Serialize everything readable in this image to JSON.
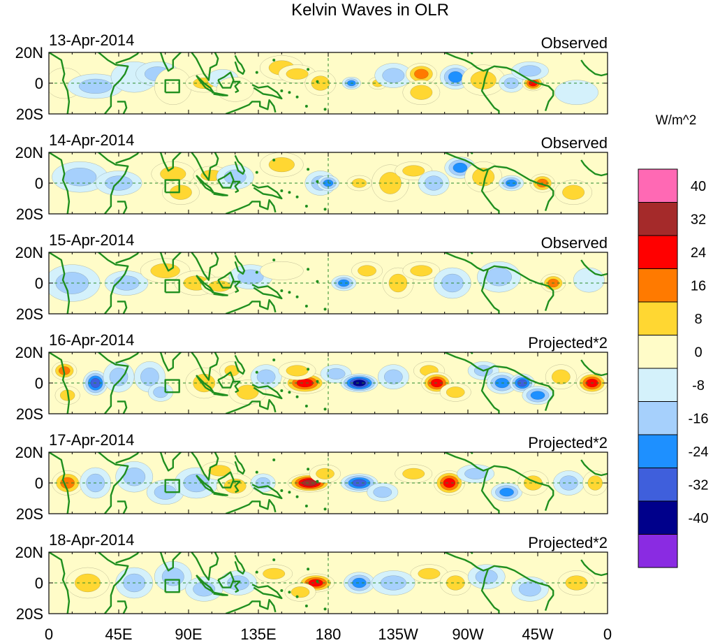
{
  "chart_data": {
    "type": "heatmap",
    "title": "Kelvin Waves in OLR",
    "variable": "OLR",
    "units_label": "W/m^2",
    "colorbar": {
      "levels": [
        -40,
        -32,
        -24,
        -16,
        -8,
        0,
        8,
        16,
        24,
        32,
        40
      ],
      "labels": [
        "40",
        "32",
        "24",
        "16",
        "8",
        "0",
        "-8",
        "-16",
        "-24",
        "-32",
        "-40"
      ],
      "colors": [
        "#8a2be2",
        "#00008b",
        "#3f5fdc",
        "#1e90ff",
        "#a6d0fc",
        "#d4f1fb",
        "#fffcc8",
        "#ffd732",
        "#ff7a00",
        "#ff0000",
        "#a52a2a",
        "#ff69b4"
      ]
    },
    "x_ticks": [
      "0",
      "45E",
      "90E",
      "135E",
      "180",
      "135W",
      "90W",
      "45W",
      "0"
    ],
    "x_tick_lons": [
      0,
      45,
      90,
      135,
      180,
      225,
      270,
      315,
      360
    ],
    "y_ticks": [
      "20N",
      "0",
      "20S"
    ],
    "y_tick_lats": [
      20,
      0,
      -20
    ],
    "xlim": [
      0,
      360
    ],
    "ylim": [
      -20,
      20
    ],
    "panels": [
      {
        "date": "13-Apr-2014",
        "label": "Observed",
        "anomalies": [
          {
            "lon": 10,
            "lat": 0,
            "value": 4,
            "wlon": 12,
            "wlat": 10
          },
          {
            "lon": 30,
            "lat": -2,
            "value": -10,
            "wlon": 18,
            "wlat": 8
          },
          {
            "lon": 55,
            "lat": 4,
            "value": -8,
            "wlon": 15,
            "wlat": 10
          },
          {
            "lon": 70,
            "lat": 6,
            "value": -9,
            "wlon": 14,
            "wlat": 8
          },
          {
            "lon": 80,
            "lat": -2,
            "value": 8,
            "wlon": 12,
            "wlat": 12
          },
          {
            "lon": 100,
            "lat": 0,
            "value": 9,
            "wlon": 12,
            "wlat": 6
          },
          {
            "lon": 112,
            "lat": 3,
            "value": -8,
            "wlon": 10,
            "wlat": 6
          },
          {
            "lon": 120,
            "lat": -4,
            "value": 8,
            "wlon": 12,
            "wlat": 8
          },
          {
            "lon": 150,
            "lat": 10,
            "value": 10,
            "wlon": 14,
            "wlat": 8
          },
          {
            "lon": 160,
            "lat": 6,
            "value": 9,
            "wlon": 12,
            "wlat": 6
          },
          {
            "lon": 175,
            "lat": 0,
            "value": 9,
            "wlon": 10,
            "wlat": 8
          },
          {
            "lon": 195,
            "lat": 0,
            "value": -22,
            "wlon": 6,
            "wlat": 4
          },
          {
            "lon": 212,
            "lat": 0,
            "value": 12,
            "wlon": 6,
            "wlat": 4
          },
          {
            "lon": 222,
            "lat": 5,
            "value": -9,
            "wlon": 12,
            "wlat": 8
          },
          {
            "lon": 240,
            "lat": 6,
            "value": 20,
            "wlon": 10,
            "wlat": 7
          },
          {
            "lon": 240,
            "lat": -6,
            "value": 14,
            "wlon": 12,
            "wlat": 8
          },
          {
            "lon": 262,
            "lat": 4,
            "value": -18,
            "wlon": 10,
            "wlat": 8
          },
          {
            "lon": 280,
            "lat": 2,
            "value": 10,
            "wlon": 14,
            "wlat": 10
          },
          {
            "lon": 298,
            "lat": 0,
            "value": -10,
            "wlon": 8,
            "wlat": 6
          },
          {
            "lon": 312,
            "lat": 0,
            "value": 26,
            "wlon": 7,
            "wlat": 5
          },
          {
            "lon": 310,
            "lat": 8,
            "value": -10,
            "wlon": 12,
            "wlat": 6
          },
          {
            "lon": 340,
            "lat": -6,
            "value": -8,
            "wlon": 14,
            "wlat": 8
          }
        ]
      },
      {
        "date": "14-Apr-2014",
        "label": "Observed",
        "anomalies": [
          {
            "lon": 20,
            "lat": 4,
            "value": -9,
            "wlon": 18,
            "wlat": 10
          },
          {
            "lon": 45,
            "lat": 0,
            "value": -9,
            "wlon": 15,
            "wlat": 8
          },
          {
            "lon": 80,
            "lat": 6,
            "value": 9,
            "wlon": 14,
            "wlat": 8
          },
          {
            "lon": 85,
            "lat": -6,
            "value": 9,
            "wlon": 12,
            "wlat": 8
          },
          {
            "lon": 105,
            "lat": 5,
            "value": 9,
            "wlon": 12,
            "wlat": 6
          },
          {
            "lon": 120,
            "lat": 4,
            "value": -9,
            "wlon": 12,
            "wlat": 8
          },
          {
            "lon": 150,
            "lat": 12,
            "value": 9,
            "wlon": 14,
            "wlat": 8
          },
          {
            "lon": 175,
            "lat": 0,
            "value": -10,
            "wlon": 10,
            "wlat": 8
          },
          {
            "lon": 180,
            "lat": 0,
            "value": -22,
            "wlon": 7,
            "wlat": 5
          },
          {
            "lon": 200,
            "lat": 0,
            "value": 9,
            "wlon": 8,
            "wlat": 5
          },
          {
            "lon": 220,
            "lat": 0,
            "value": 14,
            "wlon": 12,
            "wlat": 12
          },
          {
            "lon": 235,
            "lat": 8,
            "value": 12,
            "wlon": 12,
            "wlat": 6
          },
          {
            "lon": 248,
            "lat": 0,
            "value": -10,
            "wlon": 10,
            "wlat": 8
          },
          {
            "lon": 265,
            "lat": 10,
            "value": -18,
            "wlon": 10,
            "wlat": 7
          },
          {
            "lon": 280,
            "lat": 4,
            "value": 10,
            "wlon": 12,
            "wlat": 10
          },
          {
            "lon": 298,
            "lat": 0,
            "value": -20,
            "wlon": 8,
            "wlat": 5
          },
          {
            "lon": 318,
            "lat": 0,
            "value": 22,
            "wlon": 8,
            "wlat": 6
          },
          {
            "lon": 338,
            "lat": -6,
            "value": 9,
            "wlon": 12,
            "wlat": 8
          }
        ]
      },
      {
        "date": "15-Apr-2014",
        "label": "Observed",
        "anomalies": [
          {
            "lon": 15,
            "lat": 0,
            "value": -9,
            "wlon": 18,
            "wlat": 12
          },
          {
            "lon": 50,
            "lat": 0,
            "value": -9,
            "wlon": 14,
            "wlat": 8
          },
          {
            "lon": 75,
            "lat": 8,
            "value": 9,
            "wlon": 16,
            "wlat": 8
          },
          {
            "lon": 95,
            "lat": 0,
            "value": 9,
            "wlon": 14,
            "wlat": 8
          },
          {
            "lon": 110,
            "lat": -2,
            "value": 9,
            "wlon": 12,
            "wlat": 6
          },
          {
            "lon": 130,
            "lat": 4,
            "value": -9,
            "wlon": 14,
            "wlat": 8
          },
          {
            "lon": 150,
            "lat": 8,
            "value": 8,
            "wlon": 14,
            "wlat": 6
          },
          {
            "lon": 190,
            "lat": 0,
            "value": -20,
            "wlon": 8,
            "wlat": 5
          },
          {
            "lon": 205,
            "lat": 8,
            "value": 9,
            "wlon": 10,
            "wlat": 6
          },
          {
            "lon": 225,
            "lat": 0,
            "value": 12,
            "wlon": 10,
            "wlat": 10
          },
          {
            "lon": 240,
            "lat": 8,
            "value": 10,
            "wlon": 12,
            "wlat": 6
          },
          {
            "lon": 260,
            "lat": 0,
            "value": -10,
            "wlon": 12,
            "wlat": 10
          },
          {
            "lon": 290,
            "lat": 4,
            "value": -10,
            "wlon": 14,
            "wlat": 10
          },
          {
            "lon": 325,
            "lat": 0,
            "value": 20,
            "wlon": 8,
            "wlat": 6
          },
          {
            "lon": 348,
            "lat": 2,
            "value": -8,
            "wlon": 10,
            "wlat": 8
          }
        ]
      },
      {
        "date": "16-Apr-2014",
        "label": "Projected*2",
        "anomalies": [
          {
            "lon": 10,
            "lat": 8,
            "value": 18,
            "wlon": 8,
            "wlat": 6
          },
          {
            "lon": 12,
            "lat": -8,
            "value": 14,
            "wlon": 8,
            "wlat": 6
          },
          {
            "lon": 30,
            "lat": 0,
            "value": -28,
            "wlon": 8,
            "wlat": 8
          },
          {
            "lon": 45,
            "lat": 4,
            "value": -12,
            "wlon": 10,
            "wlat": 10
          },
          {
            "lon": 65,
            "lat": 4,
            "value": -12,
            "wlon": 10,
            "wlat": 10
          },
          {
            "lon": 72,
            "lat": -6,
            "value": -14,
            "wlon": 8,
            "wlat": 6
          },
          {
            "lon": 100,
            "lat": 0,
            "value": 12,
            "wlon": 12,
            "wlat": 10
          },
          {
            "lon": 118,
            "lat": 8,
            "value": 16,
            "wlon": 8,
            "wlat": 6
          },
          {
            "lon": 128,
            "lat": -6,
            "value": 12,
            "wlon": 12,
            "wlat": 8
          },
          {
            "lon": 140,
            "lat": 4,
            "value": -12,
            "wlon": 10,
            "wlat": 8
          },
          {
            "lon": 165,
            "lat": 0,
            "value": 26,
            "wlon": 14,
            "wlat": 7
          },
          {
            "lon": 160,
            "lat": 8,
            "value": 12,
            "wlon": 12,
            "wlat": 6
          },
          {
            "lon": 185,
            "lat": 6,
            "value": -16,
            "wlon": 10,
            "wlat": 6
          },
          {
            "lon": 200,
            "lat": 0,
            "value": -40,
            "wlon": 12,
            "wlat": 6
          },
          {
            "lon": 222,
            "lat": 4,
            "value": -14,
            "wlon": 10,
            "wlat": 8
          },
          {
            "lon": 245,
            "lat": 8,
            "value": 14,
            "wlon": 10,
            "wlat": 6
          },
          {
            "lon": 250,
            "lat": 0,
            "value": 28,
            "wlon": 10,
            "wlat": 7
          },
          {
            "lon": 262,
            "lat": -6,
            "value": 10,
            "wlon": 10,
            "wlat": 6
          },
          {
            "lon": 280,
            "lat": 8,
            "value": -14,
            "wlon": 10,
            "wlat": 6
          },
          {
            "lon": 292,
            "lat": 0,
            "value": -18,
            "wlon": 10,
            "wlat": 7
          },
          {
            "lon": 305,
            "lat": 0,
            "value": -30,
            "wlon": 8,
            "wlat": 6
          },
          {
            "lon": 315,
            "lat": -8,
            "value": -18,
            "wlon": 10,
            "wlat": 6
          },
          {
            "lon": 330,
            "lat": 4,
            "value": 10,
            "wlon": 10,
            "wlat": 8
          },
          {
            "lon": 350,
            "lat": 0,
            "value": 28,
            "wlon": 10,
            "wlat": 7
          }
        ]
      },
      {
        "date": "17-Apr-2014",
        "label": "Projected*2",
        "anomalies": [
          {
            "lon": 12,
            "lat": 0,
            "value": 22,
            "wlon": 10,
            "wlat": 8
          },
          {
            "lon": 30,
            "lat": 0,
            "value": -12,
            "wlon": 10,
            "wlat": 10
          },
          {
            "lon": 55,
            "lat": 4,
            "value": -14,
            "wlon": 12,
            "wlat": 10
          },
          {
            "lon": 75,
            "lat": -6,
            "value": -14,
            "wlon": 12,
            "wlat": 8
          },
          {
            "lon": 95,
            "lat": 0,
            "value": -10,
            "wlon": 14,
            "wlat": 10
          },
          {
            "lon": 110,
            "lat": 8,
            "value": 12,
            "wlon": 12,
            "wlat": 6
          },
          {
            "lon": 120,
            "lat": -2,
            "value": 12,
            "wlon": 12,
            "wlat": 8
          },
          {
            "lon": 138,
            "lat": 0,
            "value": -16,
            "wlon": 8,
            "wlat": 6
          },
          {
            "lon": 168,
            "lat": 0,
            "value": 34,
            "wlon": 14,
            "wlat": 6
          },
          {
            "lon": 178,
            "lat": 6,
            "value": 14,
            "wlon": 10,
            "wlat": 6
          },
          {
            "lon": 200,
            "lat": 0,
            "value": -30,
            "wlon": 12,
            "wlat": 6
          },
          {
            "lon": 215,
            "lat": -6,
            "value": -14,
            "wlon": 10,
            "wlat": 6
          },
          {
            "lon": 235,
            "lat": 6,
            "value": 12,
            "wlon": 12,
            "wlat": 6
          },
          {
            "lon": 258,
            "lat": 0,
            "value": 26,
            "wlon": 10,
            "wlat": 8
          },
          {
            "lon": 275,
            "lat": 6,
            "value": -14,
            "wlon": 12,
            "wlat": 6
          },
          {
            "lon": 295,
            "lat": -6,
            "value": -20,
            "wlon": 10,
            "wlat": 6
          },
          {
            "lon": 312,
            "lat": 0,
            "value": 12,
            "wlon": 10,
            "wlat": 8
          },
          {
            "lon": 335,
            "lat": 0,
            "value": -12,
            "wlon": 10,
            "wlat": 8
          },
          {
            "lon": 352,
            "lat": 0,
            "value": 10,
            "wlon": 8,
            "wlat": 8
          }
        ]
      },
      {
        "date": "18-Apr-2014",
        "label": "Projected*2",
        "anomalies": [
          {
            "lon": 25,
            "lat": 0,
            "value": 14,
            "wlon": 14,
            "wlat": 10
          },
          {
            "lon": 55,
            "lat": 0,
            "value": -10,
            "wlon": 12,
            "wlat": 10
          },
          {
            "lon": 80,
            "lat": 4,
            "value": -12,
            "wlon": 12,
            "wlat": 10
          },
          {
            "lon": 100,
            "lat": -4,
            "value": -10,
            "wlon": 12,
            "wlat": 8
          },
          {
            "lon": 122,
            "lat": 0,
            "value": -12,
            "wlon": 12,
            "wlat": 8
          },
          {
            "lon": 145,
            "lat": 6,
            "value": 10,
            "wlon": 12,
            "wlat": 6
          },
          {
            "lon": 172,
            "lat": 0,
            "value": 28,
            "wlon": 12,
            "wlat": 6
          },
          {
            "lon": 162,
            "lat": -6,
            "value": 10,
            "wlon": 10,
            "wlat": 6
          },
          {
            "lon": 200,
            "lat": 0,
            "value": -18,
            "wlon": 10,
            "wlat": 7
          },
          {
            "lon": 222,
            "lat": 0,
            "value": -12,
            "wlon": 14,
            "wlat": 8
          },
          {
            "lon": 245,
            "lat": 6,
            "value": 10,
            "wlon": 12,
            "wlat": 6
          },
          {
            "lon": 262,
            "lat": 0,
            "value": 10,
            "wlon": 10,
            "wlat": 8
          },
          {
            "lon": 282,
            "lat": 4,
            "value": -10,
            "wlon": 12,
            "wlat": 8
          },
          {
            "lon": 310,
            "lat": -4,
            "value": -10,
            "wlon": 12,
            "wlat": 8
          },
          {
            "lon": 340,
            "lat": 0,
            "value": 9,
            "wlon": 12,
            "wlat": 8
          }
        ]
      }
    ],
    "map_colors": {
      "coast": "#1f8f1f",
      "grid": "#2a8a2a",
      "axis": "#000000"
    }
  }
}
